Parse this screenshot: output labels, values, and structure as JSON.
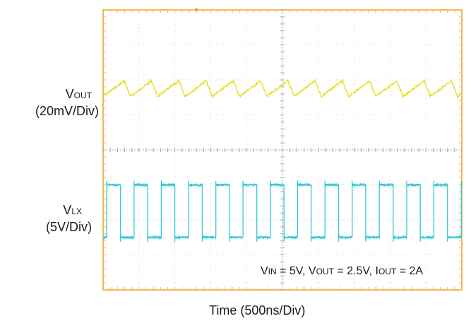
{
  "chart_data": {
    "type": "line",
    "title": "",
    "xlabel": "Time (500ns/Div)",
    "grid": true,
    "divisions": {
      "x": 10,
      "y": 8
    },
    "conditions": {
      "vin_sym": "V",
      "vin_sub": "IN",
      "vin_val": " = 5V,",
      "vout_sym": "V",
      "vout_sub": "OUT",
      "vout_val": " = 2.5V,",
      "iout_sym": "I",
      "iout_sub": "OUT",
      "iout_val": " = 2A"
    },
    "series": [
      {
        "name": "VOUT",
        "label_sym": "V",
        "label_sub": "OUT",
        "scale": "(20mV/Div)",
        "color": "#e3e021",
        "center_div": 2.25,
        "peak_to_peak_div": 0.45,
        "period_div": 0.76,
        "start_div": 0.0,
        "shape": "sawtooth"
      },
      {
        "name": "VLX",
        "label_sym": "V",
        "label_sub": "LX",
        "scale": "(5V/Div)",
        "color": "#2ec9d6",
        "high_div": 5.0,
        "low_div": 6.5,
        "period_div": 0.76,
        "duty": 0.5,
        "start_div": 0.1,
        "shape": "square"
      }
    ],
    "colors": {
      "grid_border": "#f0b75a",
      "grid_center": "#aaaaaa",
      "grid_minor": "#cfcfcf",
      "background": "#ffffff"
    }
  }
}
